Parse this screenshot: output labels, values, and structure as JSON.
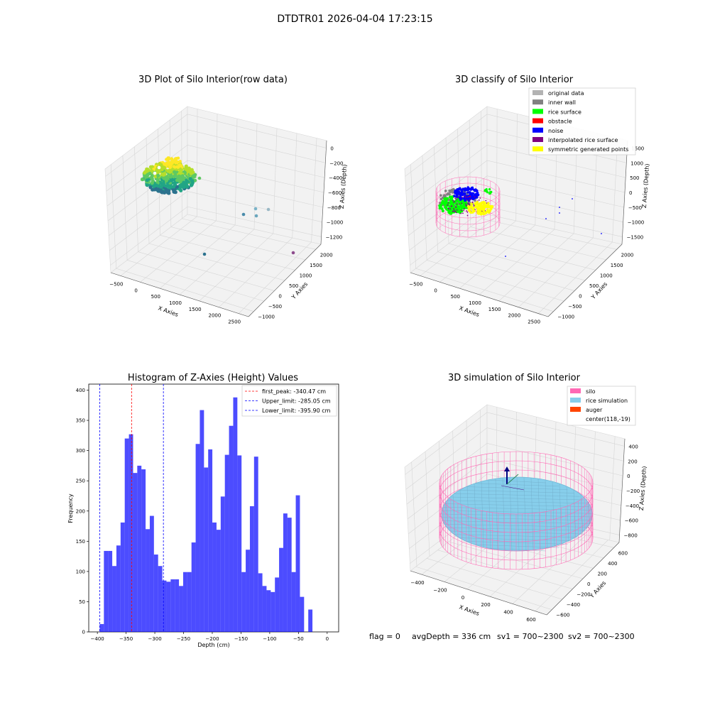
{
  "figure": {
    "suptitle": "DTDTR01 2026-04-04 17:23:15",
    "status": {
      "flag": "flag = 0",
      "avg_depth": "avgDepth = 336 cm",
      "sv1": "sv1 = 700~2300",
      "sv2": "sv2 = 700~2300"
    }
  },
  "chart_data": [
    {
      "type": "scatter",
      "title": "3D Plot of Silo Interior(row data)",
      "xlabel": "X Axies",
      "ylabel": "Y Axies",
      "zlabel": "Z Axies (Depth)",
      "xticks": [
        "−500",
        "0",
        "500",
        "1000",
        "1500",
        "2000",
        "2500"
      ],
      "yticks": [
        "−1000",
        "−500",
        "0",
        "500",
        "1000",
        "1500",
        "2000"
      ],
      "zticks": [
        "−1200",
        "−1000",
        "−800",
        "−600",
        "−400",
        "−200",
        "0"
      ],
      "colormap": [
        "#2c728e",
        "#21a585",
        "#5ec962",
        "#b5de2b",
        "#fde725"
      ]
    },
    {
      "type": "scatter",
      "title": "3D classify of Silo Interior",
      "xlabel": "X Axies",
      "ylabel": "Y Axies",
      "zlabel": "Z Axies (Depth)",
      "xticks": [
        "−500",
        "0",
        "500",
        "1000",
        "1500",
        "2000",
        "2500"
      ],
      "yticks": [
        "−1000",
        "−500",
        "0",
        "500",
        "1000",
        "1500",
        "2000"
      ],
      "zticks": [
        "−1500",
        "−1000",
        "−500",
        "0",
        "500",
        "1000",
        "1500"
      ],
      "legend": [
        {
          "label": "original data",
          "color": "#b3b3b3"
        },
        {
          "label": "inner wall",
          "color": "#808080"
        },
        {
          "label": "rice surface",
          "color": "#00ff00"
        },
        {
          "label": "obstacle",
          "color": "#ff0000"
        },
        {
          "label": "noise",
          "color": "#0000ff"
        },
        {
          "label": "interpolated rice surface",
          "color": "#800080"
        },
        {
          "label": "symmetric generated points",
          "color": "#ffff00"
        }
      ],
      "legend_placement": "top-right",
      "wireframe_color": "#ff69b4"
    },
    {
      "type": "bar",
      "title": "Histogram of Z-Axies (Height) Values",
      "xlabel": "Depth (cm)",
      "ylabel": "Frequency",
      "xlim": [
        -415,
        20
      ],
      "ylim": [
        0,
        410
      ],
      "xticks": [
        -400,
        -350,
        -300,
        -250,
        -200,
        -150,
        -100,
        -50,
        0
      ],
      "xtick_labels": [
        "−400",
        "−350",
        "−300",
        "−250",
        "−200",
        "−150",
        "−100",
        "−50",
        "0"
      ],
      "yticks": [
        0,
        50,
        100,
        150,
        200,
        250,
        300,
        350,
        400
      ],
      "bin_start": -395.9,
      "bin_width": 7.26,
      "values": [
        13,
        134,
        134,
        109,
        143,
        181,
        320,
        327,
        263,
        275,
        269,
        170,
        192,
        128,
        109,
        85,
        83,
        87,
        87,
        76,
        99,
        99,
        148,
        311,
        367,
        272,
        302,
        181,
        169,
        224,
        293,
        341,
        388,
        292,
        99,
        136,
        208,
        290,
        97,
        76,
        69,
        66,
        90,
        139,
        196,
        189,
        99,
        226,
        58,
        0,
        37
      ],
      "bar_color": "#0000ff",
      "vlines": [
        {
          "label": "first_peak: -340.47 cm",
          "x": -340.47,
          "color": "#ff0000"
        },
        {
          "label": "Upper_limit: -285.05 cm",
          "x": -285.05,
          "color": "#0000ff"
        },
        {
          "label": "Lower_limit: -395.90 cm",
          "x": -395.9,
          "color": "#0000ff"
        }
      ],
      "legend_placement": "top-right"
    },
    {
      "type": "surface",
      "title": "3D simulation of Silo Interior",
      "xlabel": "X Axies",
      "ylabel": "Y Axies",
      "zlabel": "Z Axies (Depth)",
      "xticks": [
        "−400",
        "−200",
        "0",
        "200",
        "400",
        "600"
      ],
      "yticks": [
        "−600",
        "−400",
        "−200",
        "0",
        "200",
        "400",
        "600"
      ],
      "zticks": [
        "−800",
        "−600",
        "−400",
        "−200",
        "0",
        "200",
        "400"
      ],
      "legend": [
        {
          "label": "silo",
          "color": "#ff69b4"
        },
        {
          "label": "rice simulation",
          "color": "#87ceeb"
        },
        {
          "label": "auger",
          "color": "#ff4500"
        },
        {
          "label": "center(118,-19)",
          "color": ""
        }
      ],
      "legend_placement": "top-right"
    }
  ]
}
